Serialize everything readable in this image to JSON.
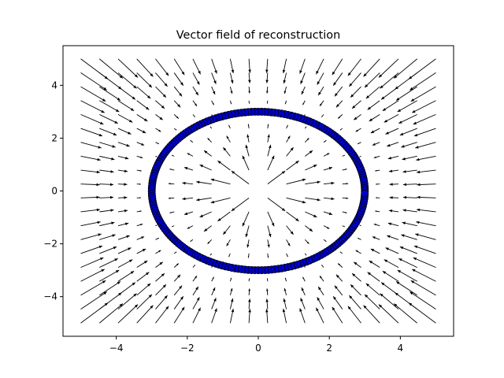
{
  "chart_data": {
    "type": "scatter",
    "title": "Vector field of reconstruction",
    "xlabel": "",
    "ylabel": "",
    "xlim": [
      -5.5,
      5.5
    ],
    "ylim": [
      -5.5,
      5.5
    ],
    "xticks": [
      -4,
      -2,
      0,
      2,
      4
    ],
    "yticks": [
      -4,
      -2,
      0,
      2,
      4
    ],
    "xtick_labels": [
      "−4",
      "−2",
      "0",
      "2",
      "4"
    ],
    "ytick_labels": [
      "−4",
      "−2",
      "0",
      "2",
      "4"
    ],
    "grid": false,
    "legend": "none",
    "quiver": {
      "x_range": [
        -5,
        5
      ],
      "y_range": [
        -5,
        5
      ],
      "grid_count": 20,
      "field_description": "radial reconstruction field toward circle of radius 3",
      "color": "#000000"
    },
    "series": [
      {
        "marker": "circle",
        "color": "#0000cc",
        "edgecolor": "#000000",
        "shape": "circle",
        "center": [
          0,
          0
        ],
        "radius": 3,
        "num_points": 200
      }
    ]
  }
}
